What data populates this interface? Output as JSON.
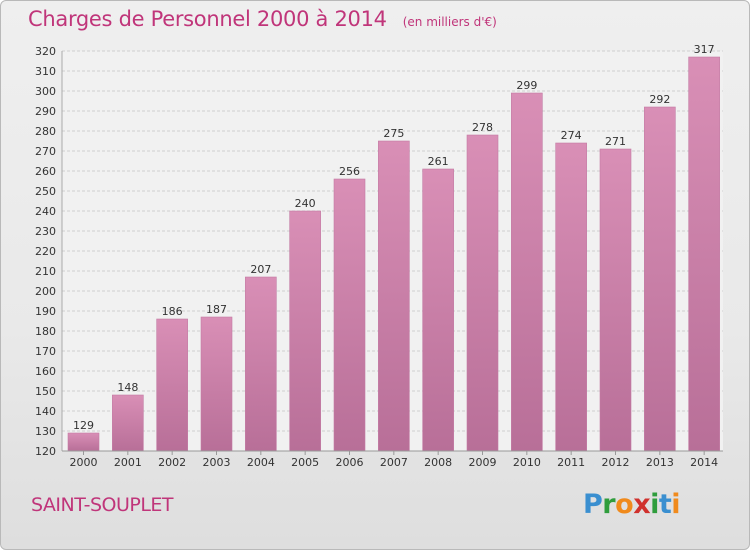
{
  "title": "Charges de Personnel 2000 à 2014",
  "unit": "(en milliers d'€)",
  "commune": "SAINT-SOUPLET",
  "logo": {
    "letters": [
      "P",
      "r",
      "o",
      "x",
      "i",
      "t",
      "i"
    ],
    "colors": [
      "#3a8fd0",
      "#2f9d3d",
      "#f08a1c",
      "#d0312d",
      "#2f9d3d",
      "#3a8fd0",
      "#f08a1c"
    ]
  },
  "chart_data": {
    "type": "bar",
    "title": "Charges de Personnel 2000 à 2014",
    "subtitle": "(en milliers d'€)",
    "categories": [
      "2000",
      "2001",
      "2002",
      "2003",
      "2004",
      "2005",
      "2006",
      "2007",
      "2008",
      "2009",
      "2010",
      "2011",
      "2012",
      "2013",
      "2014"
    ],
    "values": [
      129,
      148,
      186,
      187,
      207,
      240,
      256,
      275,
      261,
      278,
      299,
      274,
      271,
      292,
      317
    ],
    "ylim": [
      120,
      320
    ],
    "yticks": [
      120,
      130,
      140,
      150,
      160,
      170,
      180,
      190,
      200,
      210,
      220,
      230,
      240,
      250,
      260,
      270,
      280,
      290,
      300,
      310,
      320
    ],
    "grid": true,
    "bar_color": "#d98fb6",
    "bar_color_dark": "#b86f98",
    "accent": "#c0357a"
  }
}
